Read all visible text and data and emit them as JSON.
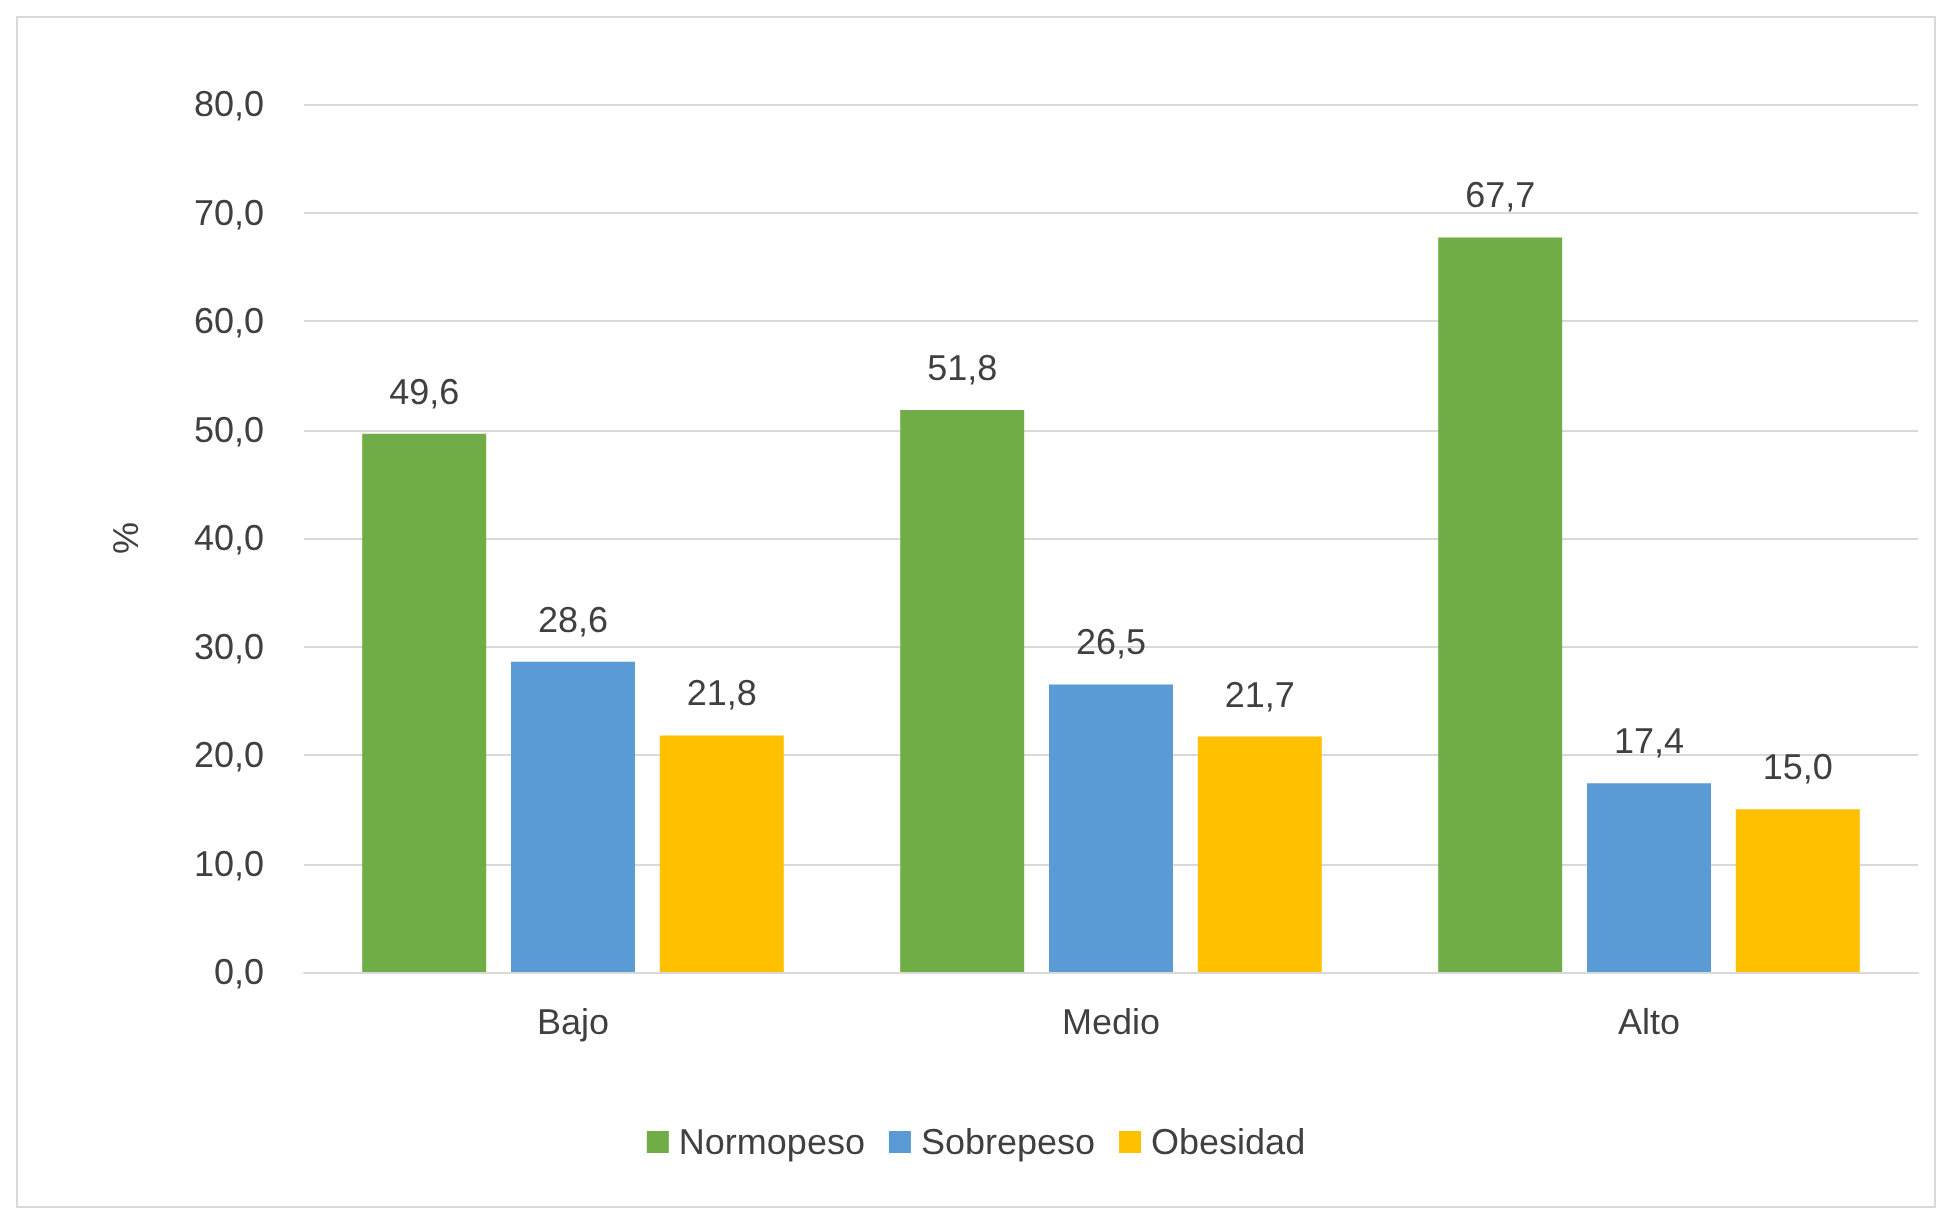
{
  "chart_data": {
    "type": "bar",
    "ylabel": "%",
    "categories": [
      "Bajo",
      "Medio",
      "Alto"
    ],
    "series": [
      {
        "name": "Normopeso",
        "color": "#70ad47",
        "values": [
          49.6,
          51.8,
          67.7
        ],
        "value_labels": [
          "49,6",
          "51,8",
          "67,7"
        ]
      },
      {
        "name": "Sobrepeso",
        "color": "#5b9bd5",
        "values": [
          28.6,
          26.5,
          17.4
        ],
        "value_labels": [
          "28,6",
          "26,5",
          "17,4"
        ]
      },
      {
        "name": "Obesidad",
        "color": "#ffc000",
        "values": [
          21.8,
          21.7,
          15.0
        ],
        "value_labels": [
          "21,8",
          "21,7",
          "15,0"
        ]
      }
    ],
    "ylim": [
      0,
      80
    ],
    "yticks": [
      {
        "value": 0,
        "label": "0,0"
      },
      {
        "value": 10,
        "label": "10,0"
      },
      {
        "value": 20,
        "label": "20,0"
      },
      {
        "value": 30,
        "label": "30,0"
      },
      {
        "value": 40,
        "label": "40,0"
      },
      {
        "value": 50,
        "label": "50,0"
      },
      {
        "value": 60,
        "label": "60,0"
      },
      {
        "value": 70,
        "label": "70,0"
      },
      {
        "value": 80,
        "label": "80,0"
      }
    ],
    "grid": "y",
    "legend": "bottom"
  }
}
